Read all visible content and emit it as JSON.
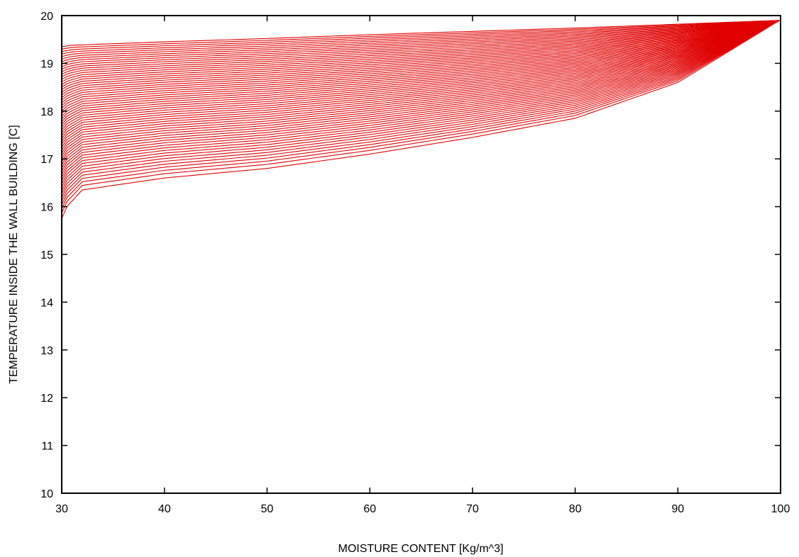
{
  "chart_data": {
    "type": "line",
    "title": "",
    "xlabel": "MOISTURE CONTENT [Kg/m^3]",
    "ylabel": "TEMPERATURE INSIDE THE WALL BUILDING [C]",
    "xlim": [
      30,
      100
    ],
    "ylim": [
      10,
      20
    ],
    "xticks": [
      30,
      40,
      50,
      60,
      70,
      80,
      90,
      100
    ],
    "yticks": [
      10,
      11,
      12,
      13,
      14,
      15,
      16,
      17,
      18,
      19,
      20
    ],
    "grid": false,
    "legend": "none",
    "line_color": "#e00000",
    "family": {
      "description_count": 60,
      "x_start": 30,
      "x_end": 99.9,
      "y_end": 19.9,
      "outer_curve": [
        [
          30,
          15.75
        ],
        [
          30.5,
          16.0
        ],
        [
          32,
          16.35
        ],
        [
          40,
          16.6
        ],
        [
          50,
          16.8
        ],
        [
          60,
          17.1
        ],
        [
          70,
          17.45
        ],
        [
          80,
          17.85
        ],
        [
          90,
          18.6
        ],
        [
          99.9,
          19.9
        ]
      ],
      "inner_curve": [
        [
          30,
          19.35
        ],
        [
          31,
          19.38
        ],
        [
          40,
          19.45
        ],
        [
          50,
          19.52
        ],
        [
          60,
          19.6
        ],
        [
          70,
          19.67
        ],
        [
          80,
          19.74
        ],
        [
          90,
          19.82
        ],
        [
          99.9,
          19.9
        ]
      ]
    }
  }
}
